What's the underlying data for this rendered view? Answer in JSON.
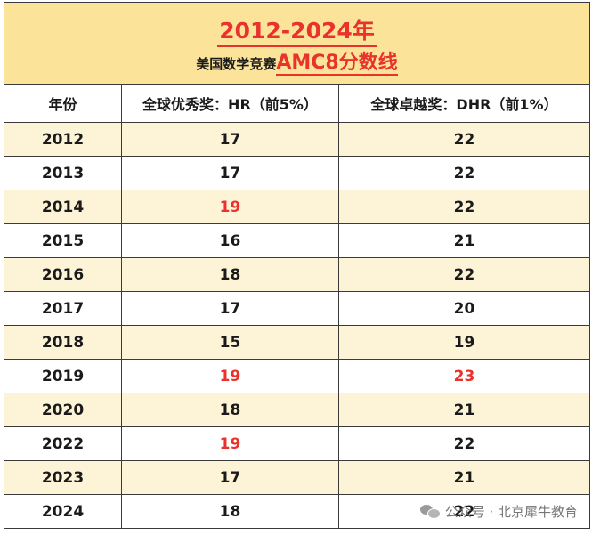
{
  "title": {
    "main": "2012-2024年",
    "sub_plain": "美国数学竞赛",
    "sub_accent": "AMC8分数线"
  },
  "headers": [
    "年份",
    "全球优秀奖：HR（前5%）",
    "全球卓越奖：DHR（前1%）"
  ],
  "rows": [
    {
      "year": "2012",
      "hr": "17",
      "dhr": "22",
      "hr_red": false,
      "dhr_red": false
    },
    {
      "year": "2013",
      "hr": "17",
      "dhr": "22",
      "hr_red": false,
      "dhr_red": false
    },
    {
      "year": "2014",
      "hr": "19",
      "dhr": "22",
      "hr_red": true,
      "dhr_red": false
    },
    {
      "year": "2015",
      "hr": "16",
      "dhr": "21",
      "hr_red": false,
      "dhr_red": false
    },
    {
      "year": "2016",
      "hr": "18",
      "dhr": "22",
      "hr_red": false,
      "dhr_red": false
    },
    {
      "year": "2017",
      "hr": "17",
      "dhr": "20",
      "hr_red": false,
      "dhr_red": false
    },
    {
      "year": "2018",
      "hr": "15",
      "dhr": "19",
      "hr_red": false,
      "dhr_red": false
    },
    {
      "year": "2019",
      "hr": "19",
      "dhr": "23",
      "hr_red": true,
      "dhr_red": true
    },
    {
      "year": "2020",
      "hr": "18",
      "dhr": "21",
      "hr_red": false,
      "dhr_red": false
    },
    {
      "year": "2022",
      "hr": "19",
      "dhr": "22",
      "hr_red": true,
      "dhr_red": false
    },
    {
      "year": "2023",
      "hr": "17",
      "dhr": "21",
      "hr_red": false,
      "dhr_red": false
    },
    {
      "year": "2024",
      "hr": "18",
      "dhr": "22",
      "hr_red": false,
      "dhr_red": false
    }
  ],
  "watermark": "公众号 · 北京犀牛教育",
  "colors": {
    "accent": "#e8322b",
    "header_bg": "#fbe49a",
    "stripe": "#fdf3d6"
  }
}
